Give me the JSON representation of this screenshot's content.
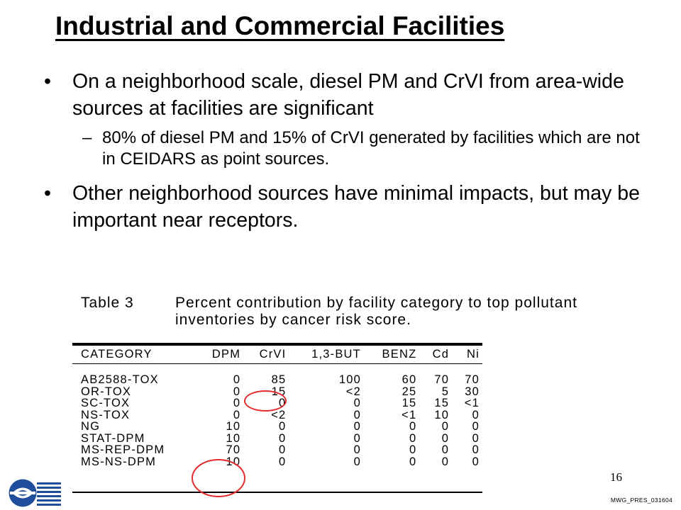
{
  "slide": {
    "title": "Industrial and Commercial Facilities",
    "bullets": [
      "On a neighborhood scale, diesel PM and CrVI from area-wide sources at facilities are significant",
      "80% of diesel PM and 15% of CrVI generated by facilities which are not in CEIDARS as point sources.",
      "Other neighborhood sources have minimal impacts, but may be important near receptors."
    ],
    "bullet_glyph": "•",
    "sub_glyph": "–",
    "page_number": "16",
    "footer_code": "MWG_PRES_031604",
    "highlight_color": "#e32b2b"
  },
  "table": {
    "label": "Table 3",
    "caption": "Percent contribution by facility category to top pollutant inventories by cancer risk score.",
    "headers": [
      "CATEGORY",
      "DPM",
      "CrVI",
      "1,3-BUT",
      "BENZ",
      "Cd",
      "Ni"
    ],
    "rows": [
      [
        "AB2588-TOX",
        "0",
        "85",
        "100",
        "60",
        "70",
        "70"
      ],
      [
        "OR-TOX",
        "0",
        "15",
        "<2",
        "25",
        "5",
        "30"
      ],
      [
        "SC-TOX",
        "0",
        "0",
        "0",
        "15",
        "15",
        "<1"
      ],
      [
        "NS-TOX",
        "0",
        "<2",
        "0",
        "<1",
        "10",
        "0"
      ],
      [
        "NG",
        "10",
        "0",
        "0",
        "0",
        "0",
        "0"
      ],
      [
        "STAT-DPM",
        "10",
        "0",
        "0",
        "0",
        "0",
        "0"
      ],
      [
        "MS-REP-DPM",
        "70",
        "0",
        "0",
        "0",
        "0",
        "0"
      ],
      [
        "MS-NS-DPM",
        "10",
        "0",
        "0",
        "0",
        "0",
        "0"
      ]
    ]
  }
}
